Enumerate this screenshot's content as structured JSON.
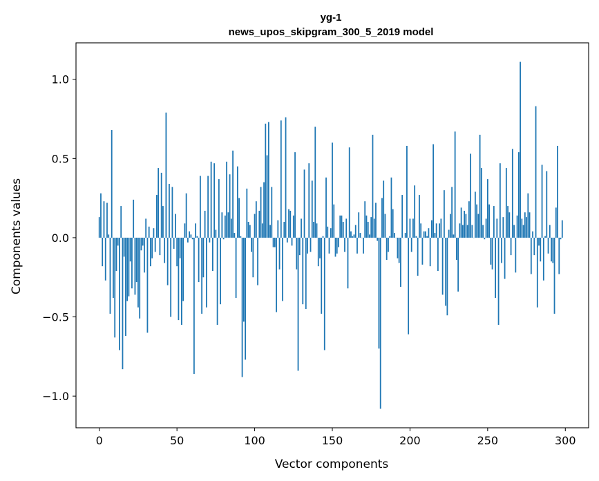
{
  "chart_data": {
    "type": "bar",
    "title": "yg-1",
    "subtitle": "news_upos_skipgram_300_5_2019 model",
    "xlabel": "Vector components",
    "ylabel": "Components values",
    "xlim": [
      -15,
      315
    ],
    "ylim": [
      -1.2,
      1.23
    ],
    "xticks": [
      {
        "value": 0,
        "label": "0"
      },
      {
        "value": 50,
        "label": "50"
      },
      {
        "value": 100,
        "label": "100"
      },
      {
        "value": 150,
        "label": "150"
      },
      {
        "value": 200,
        "label": "200"
      },
      {
        "value": 250,
        "label": "250"
      },
      {
        "value": 300,
        "label": "300"
      }
    ],
    "yticks": [
      {
        "value": 1.0,
        "label": "1.0"
      },
      {
        "value": 0.5,
        "label": "0.5"
      },
      {
        "value": 0.0,
        "label": "0.0"
      },
      {
        "value": -0.5,
        "label": "−0.5"
      },
      {
        "value": -1.0,
        "label": "−1.0"
      }
    ],
    "grid": false,
    "bar_color": "#1f77b4",
    "values": [
      0.13,
      0.28,
      -0.18,
      0.23,
      -0.27,
      0.22,
      0.02,
      -0.48,
      0.68,
      -0.38,
      -0.63,
      -0.21,
      -0.05,
      -0.71,
      0.2,
      -0.83,
      -0.12,
      -0.62,
      -0.4,
      -0.37,
      -0.15,
      -0.32,
      0.24,
      -0.36,
      -0.28,
      -0.44,
      -0.51,
      -0.08,
      -0.05,
      -0.22,
      0.12,
      -0.6,
      0.07,
      -0.18,
      -0.13,
      0.06,
      -0.09,
      0.27,
      0.44,
      -0.11,
      0.41,
      0.2,
      -0.16,
      0.79,
      -0.3,
      0.34,
      -0.5,
      0.32,
      -0.07,
      0.15,
      -0.18,
      -0.52,
      -0.13,
      -0.55,
      -0.4,
      0.09,
      0.28,
      -0.03,
      0.04,
      0.02,
      -0.01,
      -0.86,
      0.09,
      0.01,
      -0.28,
      0.39,
      -0.48,
      -0.25,
      0.17,
      -0.44,
      0.39,
      -0.03,
      0.48,
      -0.21,
      0.47,
      0.05,
      -0.55,
      0.37,
      -0.42,
      0.16,
      -0.01,
      0.14,
      0.48,
      0.16,
      0.4,
      0.12,
      0.55,
      0.03,
      -0.38,
      0.45,
      0.25,
      0.01,
      -0.88,
      -0.53,
      -0.77,
      0.31,
      0.1,
      0.08,
      -0.09,
      -0.25,
      0.15,
      0.23,
      -0.3,
      0.17,
      0.32,
      0.09,
      0.35,
      0.72,
      0.52,
      0.73,
      0.08,
      0.32,
      -0.06,
      -0.06,
      -0.47,
      0.11,
      -0.2,
      0.74,
      -0.4,
      0.1,
      0.76,
      -0.03,
      0.18,
      0.17,
      -0.05,
      0.14,
      0.54,
      -0.2,
      -0.84,
      -0.11,
      0.12,
      -0.42,
      0.43,
      -0.45,
      -0.1,
      0.47,
      -0.09,
      0.36,
      0.1,
      0.7,
      0.09,
      -0.18,
      -0.13,
      -0.48,
      0.01,
      -0.71,
      0.38,
      0.07,
      -0.1,
      0.06,
      0.6,
      0.21,
      -0.12,
      -0.1,
      -0.06,
      0.14,
      0.14,
      0.1,
      -0.09,
      0.12,
      -0.32,
      0.57,
      0.04,
      0.01,
      0.02,
      0.08,
      -0.1,
      0.16,
      0.03,
      0.0,
      -0.1,
      0.23,
      0.14,
      0.1,
      0.02,
      0.13,
      0.65,
      0.12,
      0.22,
      -0.02,
      -0.7,
      -1.08,
      0.25,
      0.36,
      0.15,
      -0.14,
      -0.09,
      0.01,
      0.38,
      0.18,
      0.03,
      0.0,
      -0.13,
      -0.16,
      -0.31,
      0.27,
      0.0,
      0.03,
      0.58,
      -0.61,
      0.12,
      -0.09,
      0.12,
      0.33,
      0.01,
      -0.24,
      0.27,
      0.09,
      -0.17,
      0.04,
      0.04,
      0.01,
      0.06,
      -0.18,
      0.11,
      0.59,
      0.03,
      0.09,
      -0.21,
      0.09,
      0.12,
      -0.36,
      0.3,
      -0.43,
      -0.49,
      0.05,
      0.15,
      0.32,
      0.02,
      0.67,
      -0.14,
      -0.34,
      0.09,
      0.19,
      0.08,
      0.17,
      0.15,
      0.08,
      0.23,
      0.53,
      0.08,
      0.0,
      0.29,
      0.21,
      0.15,
      0.65,
      0.44,
      0.08,
      -0.01,
      0.12,
      0.37,
      0.21,
      -0.17,
      -0.2,
      0.2,
      -0.38,
      0.12,
      -0.55,
      0.47,
      -0.16,
      0.13,
      -0.26,
      0.44,
      0.2,
      0.16,
      -0.11,
      0.56,
      0.08,
      -0.22,
      0.14,
      0.54,
      1.11,
      0.12,
      0.08,
      0.16,
      0.13,
      0.28,
      0.16,
      -0.23,
      0.04,
      -0.11,
      0.83,
      -0.44,
      -0.05,
      -0.15,
      0.46,
      -0.27,
      0.01,
      0.42,
      -0.1,
      0.08,
      -0.15,
      -0.16,
      -0.48,
      0.19,
      0.58,
      -0.23,
      -0.01,
      0.11
    ]
  }
}
